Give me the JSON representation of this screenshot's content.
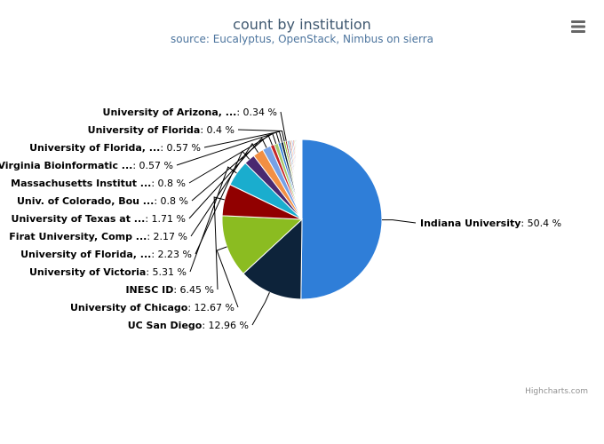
{
  "chart_data": {
    "type": "pie",
    "title": "count by institution",
    "subtitle": "source: Eucalyptus, OpenStack, Nimbus on sierra",
    "credits": "Highcharts.com",
    "menu_icon": "hamburger-menu-icon",
    "value_suffix": " %",
    "slices": [
      {
        "name": "Indiana University",
        "value": 50.4,
        "color": "#2f7ed8"
      },
      {
        "name": "UC San Diego",
        "value": 12.96,
        "color": "#0d233a"
      },
      {
        "name": "University of Chicago",
        "value": 12.67,
        "color": "#8bbc21"
      },
      {
        "name": "INESC ID",
        "value": 6.45,
        "color": "#910000"
      },
      {
        "name": "University of Victoria",
        "value": 5.31,
        "color": "#1aadce"
      },
      {
        "name": "University of Florida, ...",
        "value": 2.23,
        "color": "#492970"
      },
      {
        "name": "Firat University, Comp ...",
        "value": 2.17,
        "color": "#f28f43"
      },
      {
        "name": "University of Texas at ...",
        "value": 1.71,
        "color": "#77a1e5"
      },
      {
        "name": "Univ. of Colorado, Bou ...",
        "value": 0.8,
        "color": "#c42525"
      },
      {
        "name": "Massachusetts Institut ...",
        "value": 0.8,
        "color": "#a6c96a"
      },
      {
        "name": "Virginia Bioinformatic ...",
        "value": 0.57,
        "color": "#2f7ed8"
      },
      {
        "name": "University of Florida, ...",
        "value": 0.57,
        "color": "#0d233a"
      },
      {
        "name": "University of Florida",
        "value": 0.4,
        "color": "#8bbc21"
      },
      {
        "name": "University of Arizona, ...",
        "value": 0.34,
        "color": "#910000"
      },
      {
        "name": "",
        "value": 0.3,
        "color": "#1aadce"
      },
      {
        "name": "",
        "value": 0.3,
        "color": "#492970"
      },
      {
        "name": "",
        "value": 0.28,
        "color": "#f28f43"
      },
      {
        "name": "",
        "value": 0.27,
        "color": "#77a1e5"
      },
      {
        "name": "",
        "value": 0.25,
        "color": "#c42525"
      },
      {
        "name": "",
        "value": 0.23,
        "color": "#a6c96a"
      },
      {
        "name": "",
        "value": 0.2,
        "color": "#2f7ed8"
      },
      {
        "name": "",
        "value": 0.19,
        "color": "#0d233a"
      },
      {
        "name": "",
        "value": 0.18,
        "color": "#8bbc21"
      },
      {
        "name": "",
        "value": 0.17,
        "color": "#910000"
      },
      {
        "name": "",
        "value": 0.15,
        "color": "#1aadce"
      },
      {
        "name": "",
        "value": 0.14,
        "color": "#492970"
      },
      {
        "name": "",
        "value": 0.13,
        "color": "#f28f43"
      },
      {
        "name": "",
        "value": 0.12,
        "color": "#77a1e5"
      },
      {
        "name": "",
        "value": 0.1,
        "color": "#c42525"
      }
    ]
  }
}
